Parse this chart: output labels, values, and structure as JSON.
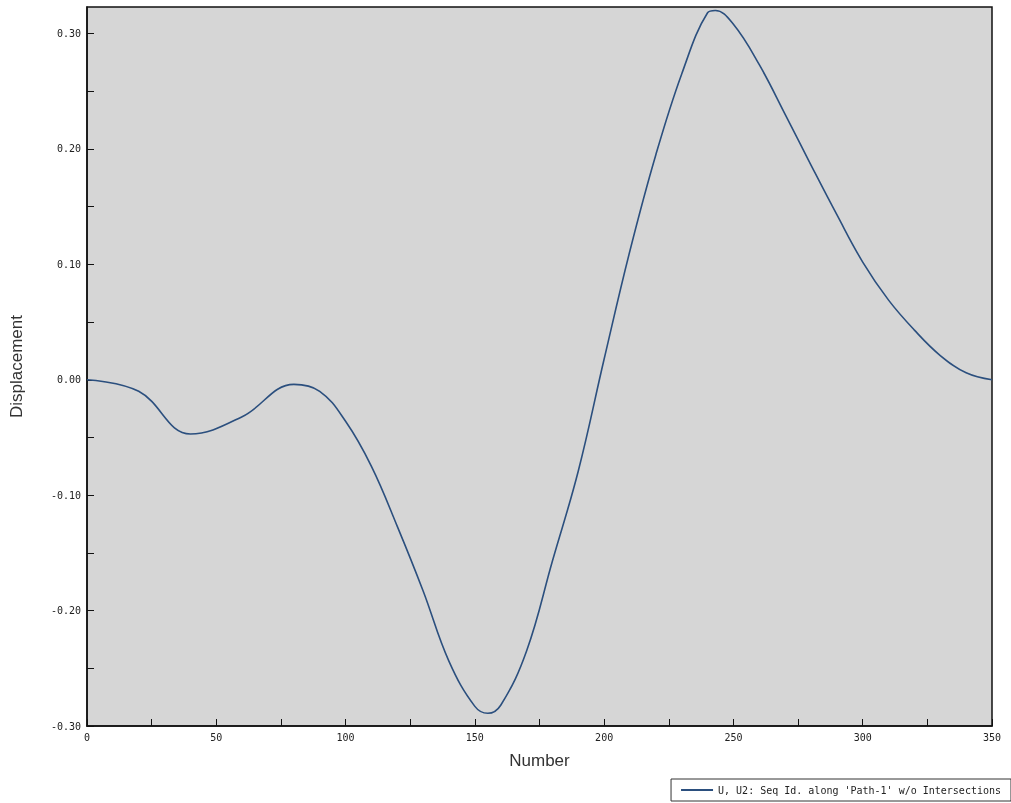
{
  "chart_data": {
    "type": "line",
    "xlabel": "Number",
    "ylabel": "Displacement",
    "x": [
      0,
      20,
      40,
      60,
      80,
      90,
      100,
      110,
      120,
      130,
      140,
      150,
      155,
      160,
      170,
      180,
      190,
      200,
      210,
      220,
      230,
      240,
      243,
      250,
      260,
      270,
      280,
      290,
      300,
      310,
      320,
      330,
      340,
      350
    ],
    "series": [
      {
        "name": "U, U2: Seq Id. along 'Path-1' w/o Intersections",
        "color": "#2b4f7e",
        "values": [
          0,
          -0.01,
          -0.047,
          -0.032,
          -0.004,
          -0.01,
          -0.036,
          -0.075,
          -0.127,
          -0.183,
          -0.244,
          -0.283,
          -0.289,
          -0.282,
          -0.235,
          -0.157,
          -0.079,
          0.018,
          0.112,
          0.195,
          0.265,
          0.318,
          0.32,
          0.308,
          0.273,
          0.23,
          0.186,
          0.143,
          0.102,
          0.069,
          0.043,
          0.021,
          0.006,
          0
        ]
      }
    ],
    "xlim": [
      0,
      350
    ],
    "xticks": [
      0,
      {
        "value": 25,
        "label": null
      },
      50,
      {
        "value": 75,
        "label": null
      },
      100,
      {
        "value": 125,
        "label": null
      },
      150,
      {
        "value": 175,
        "label": null
      },
      200,
      {
        "value": 225,
        "label": null
      },
      250,
      {
        "value": 275,
        "label": null
      },
      300,
      {
        "value": 325,
        "label": null
      },
      350
    ],
    "ylim": [
      -0.3,
      0.323
    ],
    "yticks": [
      {
        "value": -0.3,
        "label": "-0.30"
      },
      {
        "value": -0.25,
        "label": null
      },
      {
        "value": -0.2,
        "label": "-0.20"
      },
      {
        "value": -0.15,
        "label": null
      },
      {
        "value": -0.1,
        "label": "-0.10"
      },
      {
        "value": -0.05,
        "label": null
      },
      {
        "value": 0,
        "label": "0.00"
      },
      {
        "value": 0.05,
        "label": null
      },
      {
        "value": 0.1,
        "label": "0.10"
      },
      {
        "value": 0.15,
        "label": null
      },
      {
        "value": 0.2,
        "label": "0.20"
      },
      {
        "value": 0.25,
        "label": null
      },
      {
        "value": 0.3,
        "label": "0.30"
      }
    ],
    "grid": false,
    "legend": "bottom right",
    "marker": "none",
    "line_style": "solid"
  }
}
